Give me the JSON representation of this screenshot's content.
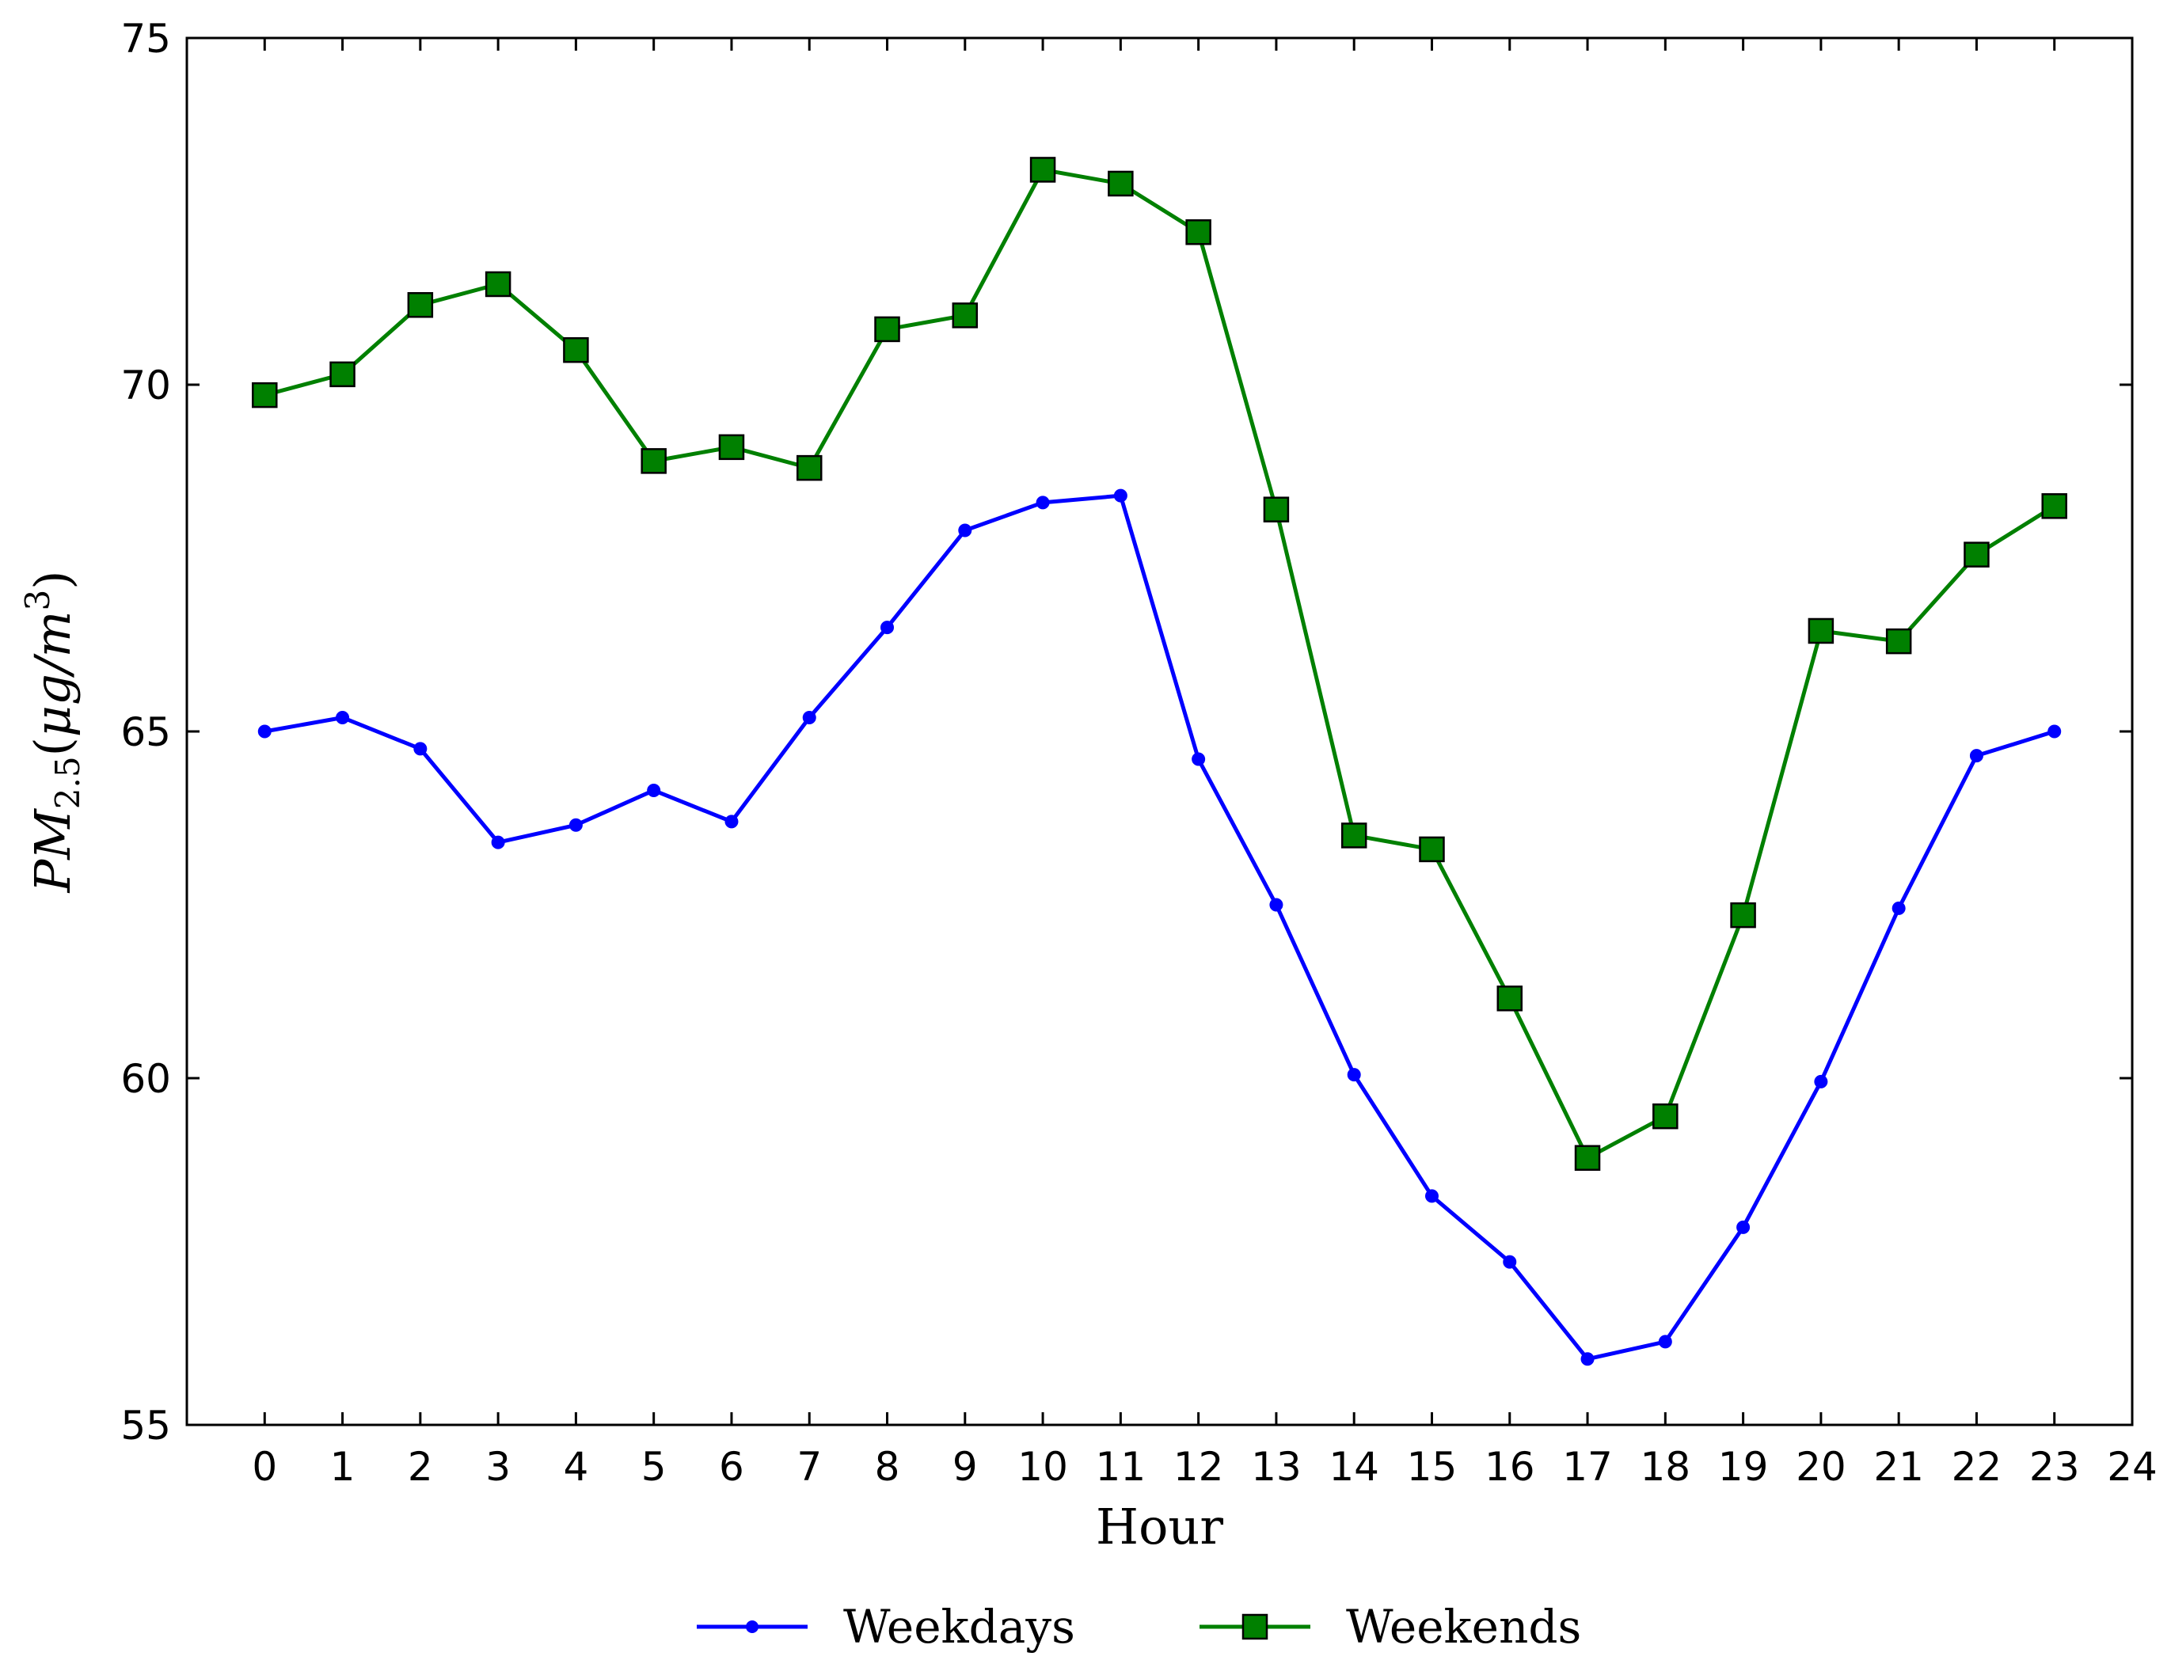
{
  "chart_data": {
    "type": "line",
    "title": "",
    "xlabel": "Hour",
    "ylabel": {
      "main": "PM",
      "sub": "2.5",
      "open": "(",
      "mu": "μ",
      "g": "g",
      "slash": "/",
      "m": "m",
      "sup": "3",
      "close": ")"
    },
    "xlim": [
      -1,
      24
    ],
    "ylim": [
      55,
      75
    ],
    "x": [
      0,
      1,
      2,
      3,
      4,
      5,
      6,
      7,
      8,
      9,
      10,
      11,
      12,
      13,
      14,
      15,
      16,
      17,
      18,
      19,
      20,
      21,
      22,
      23
    ],
    "xticks": [
      "0",
      "1",
      "2",
      "3",
      "4",
      "5",
      "6",
      "7",
      "8",
      "9",
      "10",
      "11",
      "12",
      "13",
      "14",
      "15",
      "16",
      "17",
      "18",
      "19",
      "20",
      "21",
      "22",
      "23",
      "24"
    ],
    "yticks": [
      "55",
      "60",
      "65",
      "70",
      "75"
    ],
    "grid": false,
    "legend_position": "bottom-center",
    "series": [
      {
        "name": "Weekdays",
        "color": "#0000ff",
        "marker": "circle",
        "values": [
          65.0,
          65.2,
          64.75,
          63.4,
          63.65,
          64.15,
          63.7,
          65.2,
          66.5,
          67.9,
          68.3,
          68.4,
          64.6,
          62.5,
          60.05,
          58.3,
          57.35,
          55.95,
          56.2,
          57.85,
          59.95,
          62.45,
          64.65,
          65.0
        ]
      },
      {
        "name": "Weekends",
        "color": "#008000",
        "marker": "square",
        "values": [
          69.85,
          70.15,
          71.15,
          71.45,
          70.5,
          68.9,
          69.1,
          68.8,
          70.8,
          71.0,
          73.1,
          72.9,
          72.2,
          68.2,
          63.5,
          63.3,
          61.15,
          58.85,
          59.45,
          62.35,
          66.45,
          66.3,
          67.55,
          68.25
        ]
      }
    ]
  }
}
